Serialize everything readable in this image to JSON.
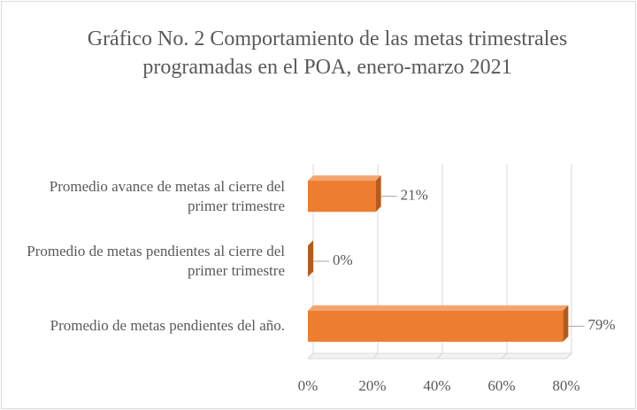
{
  "chart_data": {
    "type": "bar",
    "orientation": "horizontal",
    "title": "Gráfico No. 2 Comportamiento de las metas trimestrales programadas en el POA, enero-marzo 2021",
    "categories": [
      "Promedio avance de metas al cierre del primer trimestre",
      "Promedio de metas pendientes al cierre del primer trimestre",
      "Promedio de metas pendientes del año."
    ],
    "values": [
      21,
      0,
      79
    ],
    "value_labels": [
      "21%",
      "0%",
      "79%"
    ],
    "color": "#ed7d31",
    "xlim": [
      0,
      80
    ],
    "xticks": [
      {
        "value": 0,
        "label": "0%"
      },
      {
        "value": 20,
        "label": "20%"
      },
      {
        "value": 40,
        "label": "40%"
      },
      {
        "value": 60,
        "label": "60%"
      },
      {
        "value": 80,
        "label": "80%"
      }
    ],
    "grid": true
  }
}
